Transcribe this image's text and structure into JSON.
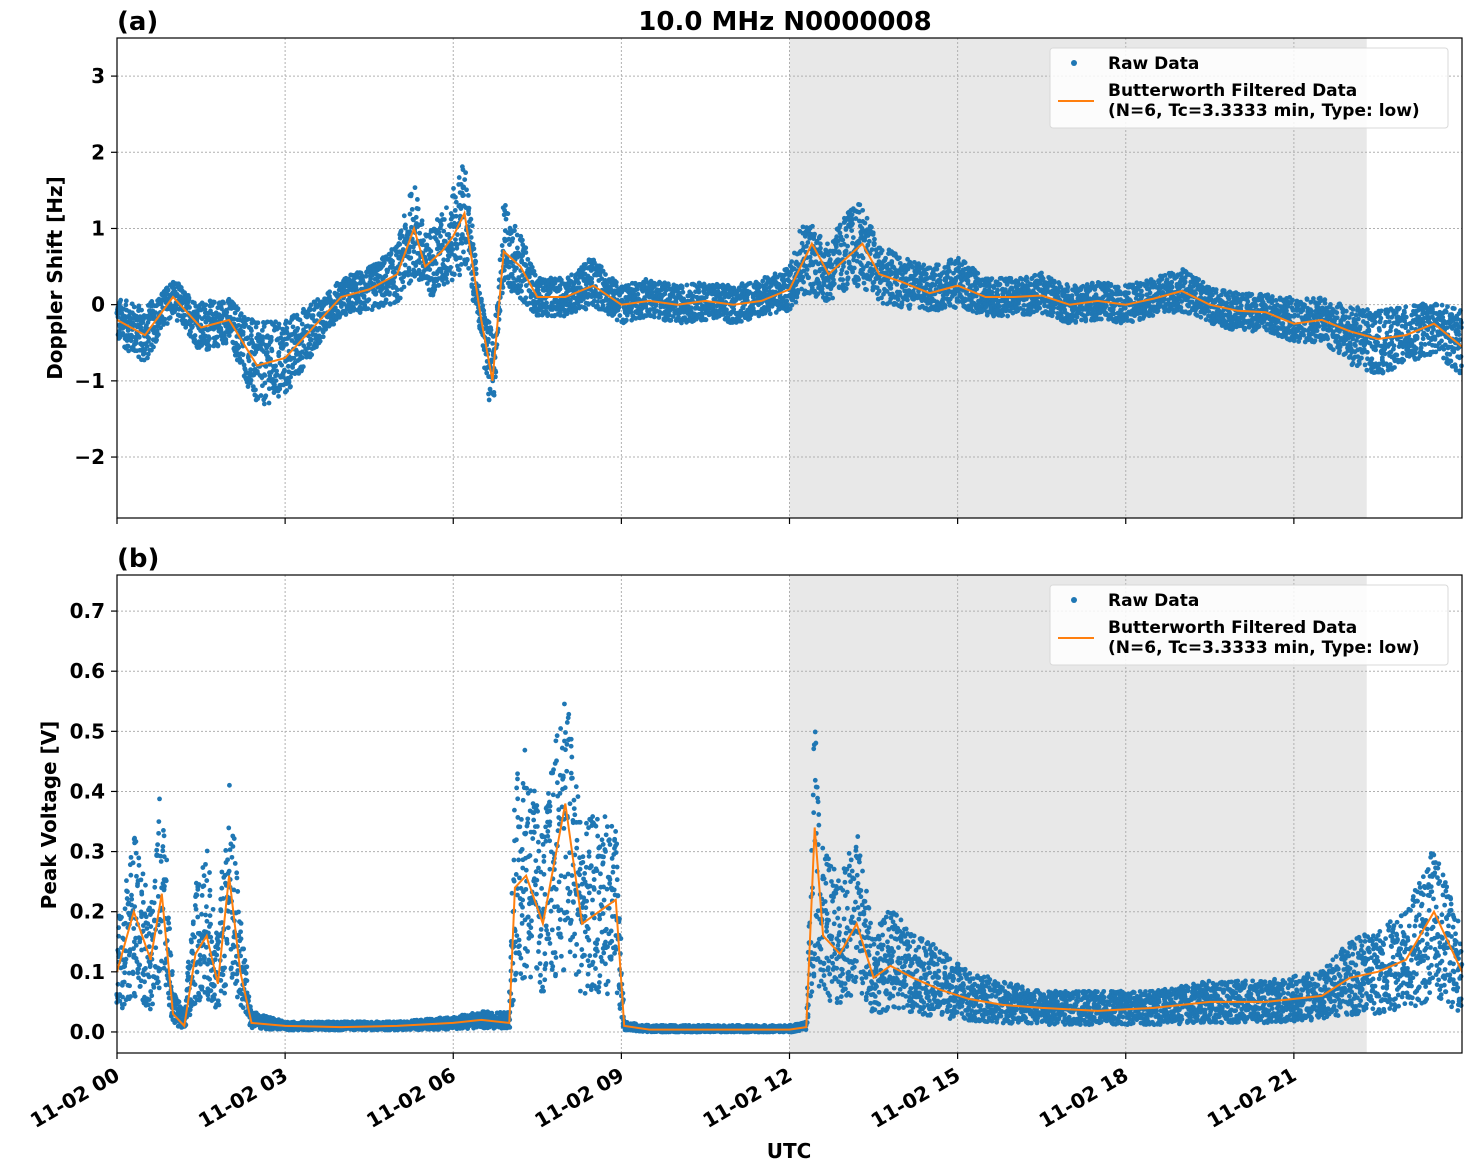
{
  "figure": {
    "title": "10.0 MHz N0000008",
    "xlabel": "UTC"
  },
  "chart_data": [
    {
      "type": "scatter",
      "panel_label": "(a)",
      "title": "10.0 MHz N0000008",
      "xlabel": "UTC",
      "ylabel": "Doppler Shift [Hz]",
      "xlim": [
        0,
        24
      ],
      "ylim": [
        -2.8,
        3.5
      ],
      "yticks": [
        -2,
        -1,
        0,
        1,
        2,
        3
      ],
      "yticklabels": [
        "−2",
        "−1",
        "0",
        "1",
        "2",
        "3"
      ],
      "xticks": [
        0,
        3,
        6,
        9,
        12,
        15,
        18,
        21
      ],
      "xticklabels": [
        "11-02 00",
        "11-02 03",
        "11-02 06",
        "11-02 09",
        "11-02 12",
        "11-02 15",
        "11-02 18",
        "11-02 21"
      ],
      "shaded_span": [
        12,
        22.3
      ],
      "grid": true,
      "legend_position": "upper right",
      "series": [
        {
          "name": "Raw Data",
          "kind": "points",
          "color": "#1f77b4",
          "x": [
            0,
            0.5,
            1,
            1.5,
            2,
            2.5,
            3,
            3.5,
            4,
            4.5,
            5,
            5.3,
            5.5,
            5.8,
            6,
            6.2,
            6.5,
            6.7,
            6.9,
            7.2,
            7.5,
            8,
            8.5,
            9,
            9.5,
            10,
            10.5,
            11,
            11.5,
            12,
            12.2,
            12.4,
            12.7,
            13,
            13.3,
            13.6,
            14,
            14.5,
            15,
            15.5,
            16,
            16.5,
            17,
            17.5,
            18,
            18.5,
            19,
            19.5,
            20,
            20.5,
            21,
            21.5,
            22,
            22.5,
            23,
            23.5,
            24
          ],
          "y": [
            -0.2,
            -0.4,
            0.1,
            -0.3,
            -0.2,
            -0.8,
            -0.7,
            -0.3,
            0.1,
            0.2,
            0.4,
            1.0,
            0.5,
            0.7,
            0.9,
            1.2,
            -0.2,
            -1.0,
            0.8,
            0.5,
            0.1,
            0.1,
            0.3,
            0.0,
            0.1,
            0.0,
            0.05,
            0.0,
            0.1,
            0.2,
            0.6,
            0.6,
            0.4,
            0.7,
            0.8,
            0.4,
            0.3,
            0.2,
            0.3,
            0.1,
            0.1,
            0.15,
            0.0,
            0.05,
            0.0,
            0.1,
            0.2,
            0.0,
            -0.1,
            -0.1,
            -0.2,
            -0.2,
            -0.4,
            -0.5,
            -0.4,
            -0.3,
            -0.5
          ]
        },
        {
          "name": "Butterworth Filtered Data\n(N=6, Tc=3.3333 min, Type: low)",
          "kind": "line",
          "color": "#ff7f0e",
          "x": [
            0,
            0.5,
            1,
            1.5,
            2,
            2.5,
            3,
            3.5,
            4,
            4.5,
            5,
            5.3,
            5.5,
            5.8,
            6,
            6.2,
            6.5,
            6.7,
            6.9,
            7.2,
            7.5,
            8,
            8.5,
            9,
            9.5,
            10,
            10.5,
            11,
            11.5,
            12,
            12.2,
            12.4,
            12.7,
            13,
            13.3,
            13.6,
            14,
            14.5,
            15,
            15.5,
            16,
            16.5,
            17,
            17.5,
            18,
            18.5,
            19,
            19.5,
            20,
            20.5,
            21,
            21.5,
            22,
            22.5,
            23,
            23.5,
            24
          ],
          "y": [
            -0.2,
            -0.4,
            0.1,
            -0.3,
            -0.2,
            -0.8,
            -0.7,
            -0.3,
            0.1,
            0.2,
            0.4,
            1.0,
            0.5,
            0.7,
            0.9,
            1.2,
            -0.2,
            -1.0,
            0.7,
            0.5,
            0.1,
            0.1,
            0.25,
            0.0,
            0.05,
            0.0,
            0.05,
            0.0,
            0.05,
            0.2,
            0.5,
            0.8,
            0.4,
            0.6,
            0.8,
            0.4,
            0.3,
            0.15,
            0.25,
            0.1,
            0.1,
            0.12,
            0.0,
            0.05,
            0.0,
            0.08,
            0.18,
            0.0,
            -0.08,
            -0.1,
            -0.25,
            -0.2,
            -0.35,
            -0.45,
            -0.4,
            -0.25,
            -0.55
          ]
        }
      ]
    },
    {
      "type": "scatter",
      "panel_label": "(b)",
      "xlabel": "UTC",
      "ylabel": "Peak Voltage [V]",
      "xlim": [
        0,
        24
      ],
      "ylim": [
        -0.035,
        0.76
      ],
      "yticks": [
        0.0,
        0.1,
        0.2,
        0.3,
        0.4,
        0.5,
        0.6,
        0.7
      ],
      "yticklabels": [
        "0.0",
        "0.1",
        "0.2",
        "0.3",
        "0.4",
        "0.5",
        "0.6",
        "0.7"
      ],
      "xticks": [
        0,
        3,
        6,
        9,
        12,
        15,
        18,
        21
      ],
      "xticklabels": [
        "11-02 00",
        "11-02 03",
        "11-02 06",
        "11-02 09",
        "11-02 12",
        "11-02 15",
        "11-02 18",
        "11-02 21"
      ],
      "shaded_span": [
        12,
        22.3
      ],
      "grid": true,
      "legend_position": "upper right",
      "series": [
        {
          "name": "Raw Data",
          "kind": "points",
          "color": "#1f77b4",
          "x": [
            0,
            0.3,
            0.6,
            0.8,
            1.0,
            1.2,
            1.4,
            1.6,
            1.8,
            2.0,
            2.2,
            2.4,
            3,
            4,
            5,
            6,
            6.5,
            7.0,
            7.1,
            7.3,
            7.6,
            8.0,
            8.3,
            8.6,
            8.9,
            9.05,
            9.5,
            10,
            11,
            12,
            12.3,
            12.45,
            12.6,
            12.9,
            13.2,
            13.5,
            13.8,
            14.2,
            14.7,
            15.2,
            15.8,
            16.5,
            17.5,
            18.5,
            19.5,
            20.5,
            21.5,
            22.0,
            22.5,
            23.0,
            23.5,
            24
          ],
          "y": [
            0.1,
            0.2,
            0.12,
            0.25,
            0.04,
            0.02,
            0.15,
            0.18,
            0.1,
            0.25,
            0.12,
            0.02,
            0.01,
            0.01,
            0.01,
            0.015,
            0.02,
            0.02,
            0.25,
            0.28,
            0.2,
            0.35,
            0.2,
            0.22,
            0.2,
            0.01,
            0.005,
            0.005,
            0.005,
            0.005,
            0.01,
            0.32,
            0.18,
            0.15,
            0.2,
            0.1,
            0.12,
            0.1,
            0.08,
            0.06,
            0.05,
            0.04,
            0.04,
            0.04,
            0.05,
            0.05,
            0.06,
            0.09,
            0.1,
            0.12,
            0.18,
            0.1
          ]
        },
        {
          "name": "Butterworth Filtered Data\n(N=6, Tc=3.3333 min, Type: low)",
          "kind": "line",
          "color": "#ff7f0e",
          "x": [
            0,
            0.3,
            0.6,
            0.8,
            1.0,
            1.2,
            1.4,
            1.6,
            1.8,
            2.0,
            2.2,
            2.4,
            3,
            4,
            5,
            6,
            6.5,
            7.0,
            7.1,
            7.3,
            7.6,
            8.0,
            8.3,
            8.6,
            8.9,
            9.05,
            9.5,
            10,
            11,
            12,
            12.3,
            12.45,
            12.6,
            12.9,
            13.2,
            13.5,
            13.8,
            14.2,
            14.7,
            15.2,
            15.8,
            16.5,
            17.5,
            18.5,
            19.5,
            20.5,
            21.5,
            22.0,
            22.5,
            23.0,
            23.5,
            24
          ],
          "y": [
            0.1,
            0.2,
            0.12,
            0.23,
            0.03,
            0.01,
            0.13,
            0.16,
            0.08,
            0.26,
            0.1,
            0.015,
            0.01,
            0.008,
            0.01,
            0.015,
            0.02,
            0.015,
            0.24,
            0.26,
            0.18,
            0.38,
            0.18,
            0.2,
            0.22,
            0.01,
            0.004,
            0.004,
            0.004,
            0.004,
            0.008,
            0.34,
            0.16,
            0.13,
            0.18,
            0.09,
            0.11,
            0.09,
            0.07,
            0.055,
            0.045,
            0.04,
            0.035,
            0.04,
            0.05,
            0.05,
            0.06,
            0.09,
            0.1,
            0.12,
            0.2,
            0.1
          ]
        }
      ]
    }
  ]
}
